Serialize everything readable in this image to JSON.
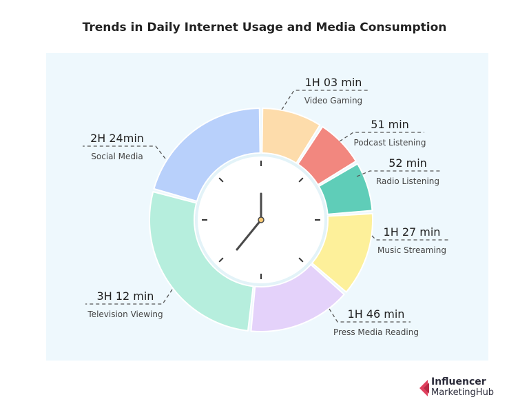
{
  "title": "Trends in Daily Internet Usage and Media Consumption",
  "brand": {
    "line1": "Influencer",
    "line2": "MarketingHub",
    "accent": "#e0405e"
  },
  "chart_data": {
    "type": "pie",
    "variant": "donut",
    "title": "Trends in Daily Internet Usage and Media Consumption",
    "unit": "minutes",
    "segments": [
      {
        "label": "Video Gaming",
        "display": "1H 03 min",
        "value": 63,
        "color": "#fddcab"
      },
      {
        "label": "Podcast Listening",
        "display": "51 min",
        "value": 51,
        "color": "#f2877f"
      },
      {
        "label": "Radio Listening",
        "display": "52 min",
        "value": 52,
        "color": "#5fcdb8"
      },
      {
        "label": "Music Streaming",
        "display": "1H 27 min",
        "value": 87,
        "color": "#fdf09a"
      },
      {
        "label": "Press Media Reading",
        "display": "1H 46 min",
        "value": 106,
        "color": "#e4d2fa"
      },
      {
        "label": "Television Viewing",
        "display": "3H 12 min",
        "value": 192,
        "color": "#b6eedd"
      },
      {
        "label": "Social Media",
        "display": "2H 24min",
        "value": 144,
        "color": "#b8d0fb"
      }
    ]
  }
}
